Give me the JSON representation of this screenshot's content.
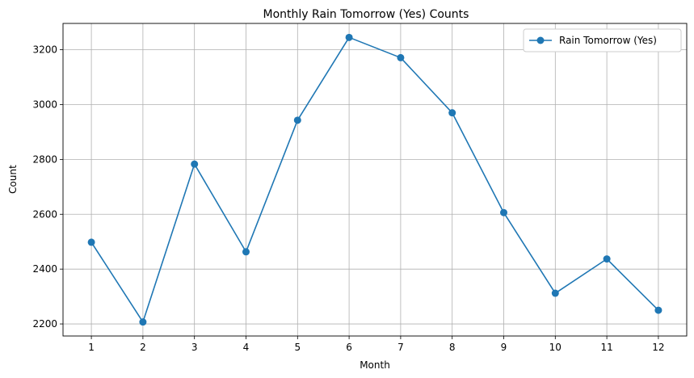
{
  "chart_data": {
    "type": "line",
    "title": "Monthly Rain Tomorrow (Yes) Counts",
    "xlabel": "Month",
    "ylabel": "Count",
    "x": [
      1,
      2,
      3,
      4,
      5,
      6,
      7,
      8,
      9,
      10,
      11,
      12
    ],
    "x_ticks": [
      "1",
      "2",
      "3",
      "4",
      "5",
      "6",
      "7",
      "8",
      "9",
      "10",
      "11",
      "12"
    ],
    "y_ticks": [
      "2200",
      "2400",
      "2600",
      "2800",
      "3000",
      "3200"
    ],
    "y_tick_values": [
      2200,
      2400,
      2600,
      2800,
      3000,
      3200
    ],
    "xlim": [
      0.45,
      12.55
    ],
    "ylim": [
      2156,
      3296
    ],
    "grid": true,
    "legend": "top-right",
    "series": [
      {
        "name": "Rain Tomorrow (Yes)",
        "color": "#1f77b4",
        "marker": "circle",
        "values": [
          2498,
          2207,
          2783,
          2463,
          2943,
          3245,
          3171,
          2970,
          2606,
          2312,
          2437,
          2250
        ]
      }
    ]
  }
}
